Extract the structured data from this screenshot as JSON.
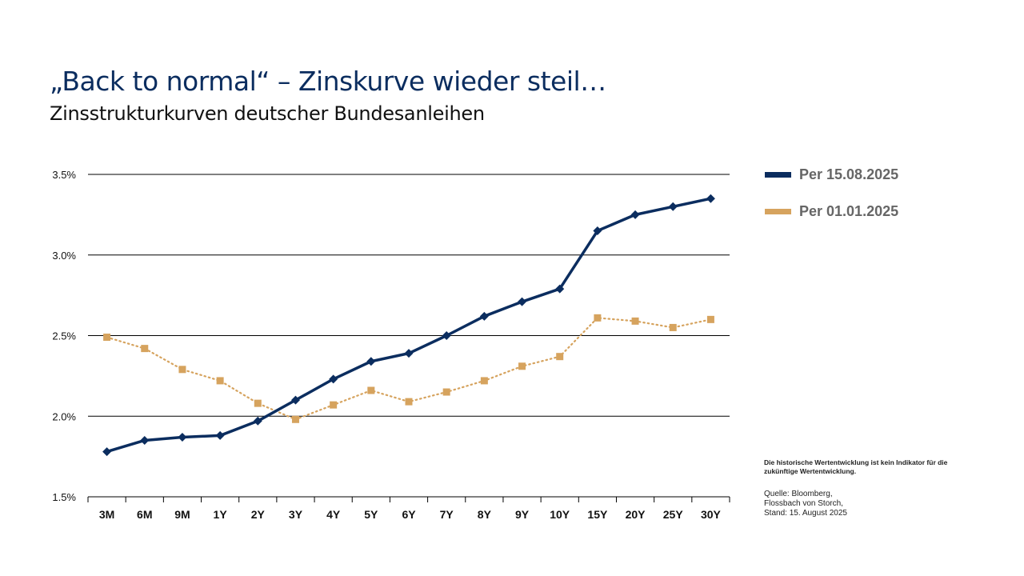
{
  "header": {
    "title": "„Back to normal“ – Zinskurve wieder steil…",
    "subtitle": "Zinsstrukturkurven deutscher Bundesanleihen"
  },
  "legend": {
    "items": [
      {
        "label": "Per 15.08.2025",
        "color": "#0b2d5f"
      },
      {
        "label": "Per 01.01.2025",
        "color": "#d6a35e"
      }
    ]
  },
  "footer": {
    "disclaimer": "Die historische Wertentwicklung ist kein Indikator für die zukünftige Wertentwicklung.",
    "source_lines": [
      "Quelle: Bloomberg,",
      "Flossbach von Storch,",
      "Stand: 15. August 2025"
    ]
  },
  "chart_data": {
    "type": "line",
    "categories": [
      "3M",
      "6M",
      "9M",
      "1Y",
      "2Y",
      "3Y",
      "4Y",
      "5Y",
      "6Y",
      "7Y",
      "8Y",
      "9Y",
      "10Y",
      "15Y",
      "20Y",
      "25Y",
      "30Y"
    ],
    "ylim": [
      1.5,
      3.5
    ],
    "yticks": [
      1.5,
      2.0,
      2.5,
      3.0,
      3.5
    ],
    "ytick_labels": [
      "1.5%",
      "2.0%",
      "2.5%",
      "3.0%",
      "3.5%"
    ],
    "grid": true,
    "legend_position": "right",
    "series": [
      {
        "name": "Per 15.08.2025",
        "color": "#0b2d5f",
        "style": "solid",
        "marker": "diamond",
        "values": [
          1.78,
          1.85,
          1.87,
          1.88,
          1.97,
          2.1,
          2.23,
          2.34,
          2.39,
          2.5,
          2.62,
          2.71,
          2.79,
          3.15,
          3.25,
          3.3,
          3.35
        ]
      },
      {
        "name": "Per 01.01.2025",
        "color": "#d6a35e",
        "style": "dotted",
        "marker": "square",
        "values": [
          2.49,
          2.42,
          2.29,
          2.22,
          2.08,
          1.98,
          2.07,
          2.16,
          2.09,
          2.15,
          2.22,
          2.31,
          2.37,
          2.61,
          2.59,
          2.55,
          2.6
        ]
      }
    ]
  }
}
